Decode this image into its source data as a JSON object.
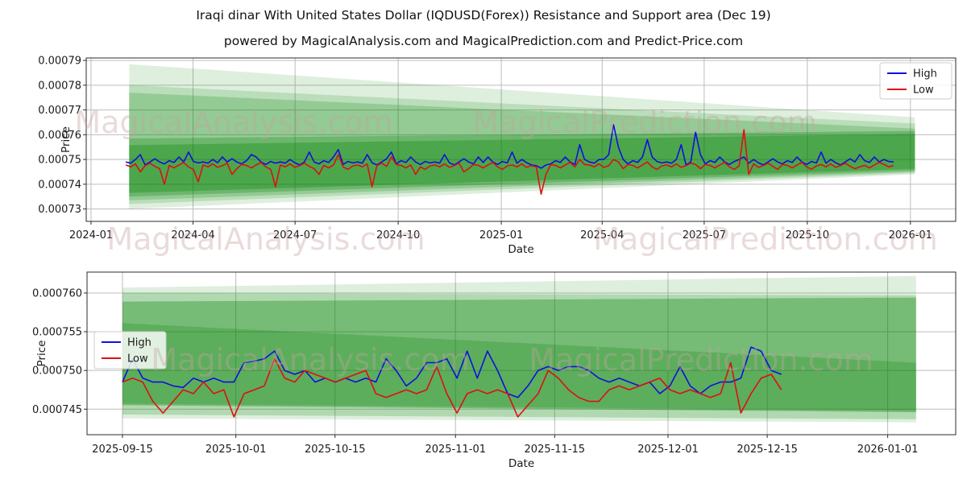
{
  "title": "Iraqi dinar With United States Dollar (IQDUSD(Forex)) Resistance and Support area (Dec 19)",
  "subtitle": "powered by MagicalAnalysis.com and MagicalPrediction.com and Predict-Price.com",
  "watermarks": {
    "analysis": "MagicalAnalysis.com",
    "prediction": "MagicalPrediction.com"
  },
  "colors": {
    "high_line": "#1010dd",
    "low_line": "#dd1010",
    "band_green": "#008000",
    "grid": "#bdbdbd",
    "spine": "#2b2b2b",
    "text": "#1a1a1a",
    "watermark": "rgba(200,160,160,0.38)",
    "legend_border": "#cccccc",
    "legend_bg": "rgba(255,255,255,0.82)"
  },
  "chart_data": [
    {
      "type": "line",
      "name": "full-history-chart",
      "xlabel": "Date",
      "ylabel": "Price",
      "grid": true,
      "legend_position": "top-right",
      "value_scale": 1e-07,
      "ylim": [
        7.25,
        7.91
      ],
      "xlim_days": [
        -4.3,
        771.4
      ],
      "x_epoch": "2024-01-01",
      "yticks": [
        {
          "v": 7.3,
          "label": "0.00073"
        },
        {
          "v": 7.4,
          "label": "0.00074"
        },
        {
          "v": 7.5,
          "label": "0.00075"
        },
        {
          "v": 7.6,
          "label": "0.00076"
        },
        {
          "v": 7.7,
          "label": "0.00077"
        },
        {
          "v": 7.8,
          "label": "0.00078"
        },
        {
          "v": 7.9,
          "label": "0.00079"
        }
      ],
      "xticks": [
        {
          "day": 0,
          "label": "2024-01"
        },
        {
          "day": 91,
          "label": "2024-04"
        },
        {
          "day": 182,
          "label": "2024-07"
        },
        {
          "day": 274,
          "label": "2024-10"
        },
        {
          "day": 366,
          "label": "2025-01"
        },
        {
          "day": 456,
          "label": "2025-04"
        },
        {
          "day": 547,
          "label": "2025-07"
        },
        {
          "day": 639,
          "label": "2025-10"
        },
        {
          "day": 731,
          "label": "2026-01"
        }
      ],
      "bands": [
        {
          "label": "resistance-support-outer",
          "alpha": 0.13,
          "x0_day": 34,
          "x1_day": 735,
          "top_left": 7.885,
          "top_right": 7.67,
          "bottom_right": 7.44,
          "bottom_left": 7.3
        },
        {
          "label": "resistance-support-wide",
          "alpha": 0.16,
          "x0_day": 34,
          "x1_day": 735,
          "top_left": 7.8,
          "top_right": 7.645,
          "bottom_right": 7.445,
          "bottom_left": 7.32
        },
        {
          "label": "resistance-support-mid",
          "alpha": 0.2,
          "x0_day": 34,
          "x1_day": 735,
          "top_left": 7.77,
          "top_right": 7.625,
          "bottom_right": 7.45,
          "bottom_left": 7.335
        },
        {
          "label": "resistance-support-inner",
          "alpha": 0.26,
          "x0_day": 34,
          "x1_day": 735,
          "top_left": 7.585,
          "top_right": 7.615,
          "bottom_right": 7.455,
          "bottom_left": 7.35
        },
        {
          "label": "resistance-support-core",
          "alpha": 0.3,
          "x0_day": 34,
          "x1_day": 735,
          "top_left": 7.558,
          "top_right": 7.603,
          "bottom_right": 7.462,
          "bottom_left": 7.365
        }
      ],
      "series": [
        {
          "name": "High",
          "color_key": "high_line",
          "start_date": "2024-02-01",
          "end_date": "2025-12-17",
          "x0_day": 31,
          "x1_day": 716,
          "values": [
            7.49,
            7.485,
            7.5,
            7.52,
            7.478,
            7.49,
            7.503,
            7.49,
            7.482,
            7.495,
            7.488,
            7.51,
            7.49,
            7.53,
            7.492,
            7.486,
            7.49,
            7.485,
            7.5,
            7.487,
            7.51,
            7.49,
            7.503,
            7.49,
            7.482,
            7.495,
            7.52,
            7.51,
            7.49,
            7.48,
            7.492,
            7.485,
            7.49,
            7.485,
            7.5,
            7.487,
            7.478,
            7.49,
            7.53,
            7.49,
            7.482,
            7.495,
            7.488,
            7.51,
            7.54,
            7.48,
            7.492,
            7.486,
            7.49,
            7.485,
            7.52,
            7.487,
            7.478,
            7.49,
            7.503,
            7.53,
            7.482,
            7.495,
            7.488,
            7.51,
            7.49,
            7.48,
            7.492,
            7.486,
            7.49,
            7.485,
            7.52,
            7.487,
            7.478,
            7.49,
            7.503,
            7.49,
            7.482,
            7.51,
            7.488,
            7.51,
            7.49,
            7.48,
            7.492,
            7.486,
            7.53,
            7.485,
            7.5,
            7.487,
            7.478,
            7.475,
            7.465,
            7.478,
            7.482,
            7.495,
            7.488,
            7.51,
            7.49,
            7.48,
            7.56,
            7.5,
            7.49,
            7.485,
            7.5,
            7.5,
            7.52,
            7.64,
            7.55,
            7.5,
            7.482,
            7.495,
            7.488,
            7.51,
            7.58,
            7.51,
            7.492,
            7.486,
            7.49,
            7.485,
            7.5,
            7.56,
            7.478,
            7.49,
            7.61,
            7.52,
            7.482,
            7.495,
            7.488,
            7.51,
            7.49,
            7.48,
            7.492,
            7.5,
            7.51,
            7.485,
            7.5,
            7.487,
            7.478,
            7.49,
            7.503,
            7.49,
            7.482,
            7.495,
            7.488,
            7.51,
            7.49,
            7.48,
            7.492,
            7.486,
            7.53,
            7.485,
            7.5,
            7.487,
            7.478,
            7.49,
            7.503,
            7.49,
            7.52,
            7.495,
            7.488,
            7.51,
            7.49,
            7.5,
            7.492,
            7.49
          ]
        },
        {
          "name": "Low",
          "color_key": "low_line",
          "start_date": "2024-02-01",
          "end_date": "2025-12-17",
          "x0_day": 31,
          "x1_day": 716,
          "values": [
            7.478,
            7.47,
            7.482,
            7.45,
            7.475,
            7.485,
            7.472,
            7.463,
            7.4,
            7.476,
            7.466,
            7.478,
            7.488,
            7.47,
            7.46,
            7.41,
            7.478,
            7.47,
            7.482,
            7.468,
            7.475,
            7.485,
            7.44,
            7.463,
            7.48,
            7.476,
            7.466,
            7.478,
            7.488,
            7.47,
            7.46,
            7.39,
            7.478,
            7.47,
            7.482,
            7.468,
            7.475,
            7.485,
            7.472,
            7.463,
            7.44,
            7.476,
            7.466,
            7.478,
            7.52,
            7.47,
            7.46,
            7.474,
            7.478,
            7.47,
            7.482,
            7.39,
            7.475,
            7.485,
            7.472,
            7.51,
            7.48,
            7.476,
            7.466,
            7.478,
            7.44,
            7.47,
            7.46,
            7.474,
            7.478,
            7.47,
            7.482,
            7.468,
            7.475,
            7.485,
            7.45,
            7.463,
            7.48,
            7.476,
            7.466,
            7.478,
            7.488,
            7.47,
            7.46,
            7.474,
            7.478,
            7.47,
            7.482,
            7.468,
            7.475,
            7.47,
            7.36,
            7.44,
            7.48,
            7.476,
            7.466,
            7.478,
            7.488,
            7.47,
            7.5,
            7.48,
            7.478,
            7.47,
            7.482,
            7.468,
            7.475,
            7.5,
            7.49,
            7.463,
            7.48,
            7.476,
            7.466,
            7.478,
            7.49,
            7.47,
            7.46,
            7.474,
            7.478,
            7.47,
            7.482,
            7.468,
            7.475,
            7.485,
            7.48,
            7.463,
            7.48,
            7.476,
            7.466,
            7.478,
            7.488,
            7.47,
            7.46,
            7.474,
            7.62,
            7.44,
            7.482,
            7.468,
            7.475,
            7.485,
            7.472,
            7.46,
            7.48,
            7.476,
            7.466,
            7.478,
            7.488,
            7.47,
            7.46,
            7.474,
            7.48,
            7.47,
            7.482,
            7.468,
            7.475,
            7.485,
            7.472,
            7.463,
            7.47,
            7.476,
            7.466,
            7.478,
            7.488,
            7.48,
            7.47,
            7.476
          ]
        }
      ]
    },
    {
      "type": "line",
      "name": "recent-zoom-chart",
      "xlabel": "Date",
      "ylabel": "Price",
      "grid": true,
      "legend_position": "left",
      "value_scale": 1e-07,
      "ylim": [
        7.417,
        7.627
      ],
      "xlim_days": [
        -5,
        117.6
      ],
      "x_epoch": "2025-09-15",
      "yticks": [
        {
          "v": 7.45,
          "label": "0.000745"
        },
        {
          "v": 7.5,
          "label": "0.000750"
        },
        {
          "v": 7.55,
          "label": "0.000755"
        },
        {
          "v": 7.6,
          "label": "0.000760"
        }
      ],
      "xticks": [
        {
          "day": 0,
          "label": "2025-09-15"
        },
        {
          "day": 16,
          "label": "2025-10-01"
        },
        {
          "day": 30,
          "label": "2025-10-15"
        },
        {
          "day": 47,
          "label": "2025-11-01"
        },
        {
          "day": 61,
          "label": "2025-11-15"
        },
        {
          "day": 77,
          "label": "2025-12-01"
        },
        {
          "day": 91,
          "label": "2025-12-15"
        },
        {
          "day": 108,
          "label": "2026-01-01"
        }
      ],
      "bands": [
        {
          "label": "resistance-support-outer",
          "alpha": 0.13,
          "x0_day": 0,
          "x1_day": 112,
          "top_left": 7.607,
          "top_right": 7.622,
          "bottom_right": 7.433,
          "bottom_left": 7.438
        },
        {
          "label": "resistance-support-mid",
          "alpha": 0.2,
          "x0_day": 0,
          "x1_day": 112,
          "top_left": 7.6,
          "top_right": 7.597,
          "bottom_right": 7.437,
          "bottom_left": 7.443
        },
        {
          "label": "resistance-support-core",
          "alpha": 0.33,
          "x0_day": 0,
          "x1_day": 112,
          "top_left": 7.589,
          "top_right": 7.594,
          "bottom_right": 7.446,
          "bottom_left": 7.455
        },
        {
          "label": "resistance-support-lower",
          "alpha": 0.22,
          "x0_day": 0,
          "x1_day": 112,
          "top_left": 7.561,
          "top_right": 7.51,
          "bottom_right": 7.448,
          "bottom_left": 7.457
        }
      ],
      "series": [
        {
          "name": "High",
          "color_key": "high_line",
          "start_date": "2025-09-15",
          "end_date": "2025-12-17",
          "x0_day": 0,
          "x1_day": 93,
          "values": [
            7.485,
            7.515,
            7.49,
            7.485,
            7.485,
            7.48,
            7.478,
            7.49,
            7.485,
            7.49,
            7.485,
            7.485,
            7.51,
            7.512,
            7.515,
            7.525,
            7.5,
            7.495,
            7.5,
            7.485,
            7.49,
            7.485,
            7.49,
            7.485,
            7.49,
            7.485,
            7.515,
            7.5,
            7.48,
            7.49,
            7.51,
            7.51,
            7.515,
            7.49,
            7.525,
            7.49,
            7.525,
            7.5,
            7.47,
            7.465,
            7.48,
            7.5,
            7.505,
            7.5,
            7.505,
            7.505,
            7.5,
            7.49,
            7.485,
            7.49,
            7.485,
            7.48,
            7.485,
            7.47,
            7.48,
            7.505,
            7.48,
            7.47,
            7.48,
            7.485,
            7.485,
            7.49,
            7.53,
            7.525,
            7.5,
            7.495
          ]
        },
        {
          "name": "Low",
          "color_key": "low_line",
          "start_date": "2025-09-15",
          "end_date": "2025-12-17",
          "x0_day": 0,
          "x1_day": 93,
          "values": [
            7.485,
            7.49,
            7.485,
            7.46,
            7.445,
            7.46,
            7.475,
            7.47,
            7.485,
            7.47,
            7.475,
            7.44,
            7.47,
            7.475,
            7.48,
            7.515,
            7.49,
            7.485,
            7.5,
            7.495,
            7.49,
            7.485,
            7.49,
            7.495,
            7.5,
            7.47,
            7.465,
            7.47,
            7.475,
            7.47,
            7.475,
            7.505,
            7.47,
            7.445,
            7.47,
            7.475,
            7.47,
            7.475,
            7.47,
            7.44,
            7.455,
            7.47,
            7.5,
            7.49,
            7.475,
            7.465,
            7.46,
            7.46,
            7.475,
            7.48,
            7.475,
            7.48,
            7.485,
            7.49,
            7.475,
            7.47,
            7.475,
            7.47,
            7.465,
            7.47,
            7.51,
            7.445,
            7.47,
            7.49,
            7.495,
            7.475
          ]
        }
      ]
    }
  ]
}
